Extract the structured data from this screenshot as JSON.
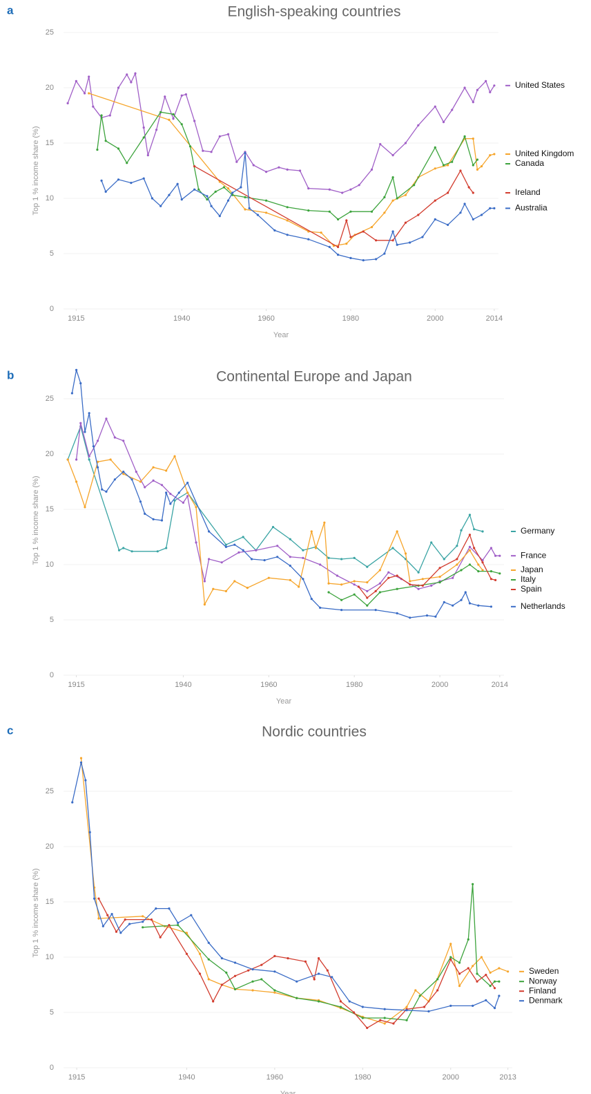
{
  "chart_data": [
    {
      "type": "line",
      "panel_label": "a",
      "title": "English-speaking countries",
      "xlabel": "Year",
      "ylabel": "Top 1 % income share (%)",
      "xlim": [
        1912,
        2015
      ],
      "ylim": [
        0,
        25
      ],
      "xticks": [
        1915,
        1940,
        1960,
        1980,
        2000,
        2014
      ],
      "yticks": [
        0,
        5,
        10,
        15,
        20,
        25
      ],
      "grid": true,
      "series": [
        {
          "name": "United States",
          "color": "#a05fc7",
          "x": [
            1913,
            1915,
            1917,
            1918,
            1919,
            1921,
            1923,
            1925,
            1927,
            1928,
            1929,
            1931,
            1932,
            1934,
            1936,
            1938,
            1940,
            1941,
            1943,
            1945,
            1947,
            1949,
            1951,
            1953,
            1955,
            1957,
            1960,
            1963,
            1965,
            1968,
            1970,
            1975,
            1978,
            1980,
            1982,
            1985,
            1987,
            1990,
            1993,
            1996,
            2000,
            2002,
            2004,
            2007,
            2009,
            2010,
            2012,
            2013,
            2014
          ],
          "values": [
            18.6,
            20.6,
            19.5,
            21,
            18.3,
            17.3,
            17.5,
            20,
            21.2,
            20.5,
            21.3,
            16.4,
            13.9,
            16.2,
            19.2,
            17.2,
            19.3,
            19.4,
            17,
            14.3,
            14.2,
            15.6,
            15.8,
            13.3,
            14.2,
            13,
            12.4,
            12.8,
            12.6,
            12.5,
            10.9,
            10.8,
            10.5,
            10.8,
            11.2,
            12.6,
            14.9,
            13.9,
            15,
            16.6,
            18.3,
            16.9,
            18,
            20,
            18.7,
            19.8,
            20.6,
            19.6,
            20.2
          ]
        },
        {
          "name": "United Kingdom",
          "color": "#f6a52b",
          "x": [
            1918,
            1937,
            1949,
            1951,
            1955,
            1960,
            1965,
            1970,
            1973,
            1976,
            1979,
            1981,
            1985,
            1988,
            1990,
            1993,
            1996,
            2000,
            2003,
            2007,
            2009,
            2010,
            2011,
            2013,
            2014
          ],
          "values": [
            19.5,
            17.1,
            11.5,
            10.9,
            9,
            8.7,
            8,
            7,
            6.9,
            5.7,
            5.9,
            6.7,
            7.4,
            8.7,
            9.8,
            10.3,
            11.9,
            12.7,
            13,
            15.4,
            15.4,
            12.6,
            12.9,
            13.9,
            14
          ]
        },
        {
          "name": "Canada",
          "color": "#3ca33c",
          "x": [
            1920,
            1921,
            1922,
            1925,
            1927,
            1931,
            1935,
            1938,
            1940,
            1942,
            1944,
            1946,
            1948,
            1950,
            1952,
            1955,
            1960,
            1965,
            1970,
            1975,
            1977,
            1980,
            1985,
            1988,
            1990,
            1991,
            1995,
            2000,
            2002,
            2004,
            2007,
            2009,
            2010
          ],
          "values": [
            14.4,
            17.5,
            15.2,
            14.5,
            13.2,
            15.5,
            17.8,
            17.6,
            16.7,
            14.7,
            10.8,
            9.9,
            10.6,
            11,
            10.3,
            10.1,
            9.8,
            9.2,
            8.9,
            8.8,
            8.1,
            8.8,
            8.8,
            10.1,
            11.9,
            10,
            11.2,
            14.6,
            13,
            13.3,
            15.6,
            13,
            13.5
          ]
        },
        {
          "name": "Ireland",
          "color": "#d23c2e",
          "x": [
            1943,
            1977,
            1979,
            1980,
            1983,
            1986,
            1990,
            1993,
            1996,
            2000,
            2003,
            2006,
            2008,
            2009
          ],
          "values": [
            12.9,
            5.6,
            8,
            6.5,
            7,
            6.2,
            6.2,
            7.8,
            8.5,
            9.8,
            10.5,
            12.5,
            11,
            10.5
          ]
        },
        {
          "name": "Australia",
          "color": "#3a6cc6",
          "x": [
            1921,
            1922,
            1925,
            1928,
            1931,
            1933,
            1935,
            1937,
            1939,
            1940,
            1943,
            1946,
            1947,
            1949,
            1951,
            1952,
            1954,
            1955,
            1956,
            1958,
            1962,
            1965,
            1970,
            1975,
            1977,
            1980,
            1983,
            1986,
            1988,
            1990,
            1991,
            1994,
            1997,
            2000,
            2003,
            2006,
            2007,
            2009,
            2011,
            2013,
            2014
          ],
          "values": [
            11.6,
            10.6,
            11.7,
            11.4,
            11.8,
            10,
            9.3,
            10.3,
            11.3,
            9.9,
            10.8,
            10.2,
            9.3,
            8.4,
            9.8,
            10.5,
            11,
            14.1,
            9.1,
            8.5,
            7.1,
            6.7,
            6.3,
            5.6,
            4.9,
            4.6,
            4.4,
            4.5,
            5,
            7,
            5.8,
            6,
            6.5,
            8.1,
            7.6,
            8.7,
            9.5,
            8.1,
            8.5,
            9.1,
            9.1
          ]
        }
      ]
    },
    {
      "type": "line",
      "panel_label": "b",
      "title": "Continental Europe and Japan",
      "xlabel": "Year",
      "ylabel": "Top 1 % income share (%)",
      "xlim": [
        1912,
        2015
      ],
      "ylim": [
        0,
        28
      ],
      "xticks": [
        1915,
        1940,
        1960,
        1980,
        2000,
        2014
      ],
      "yticks": [
        0,
        5,
        10,
        15,
        20,
        25
      ],
      "grid": true,
      "series": [
        {
          "name": "Germany",
          "color": "#3aa4a4",
          "x": [
            1913,
            1916,
            1918,
            1925,
            1926,
            1928,
            1934,
            1936,
            1938,
            1941,
            1950,
            1954,
            1957,
            1961,
            1965,
            1968,
            1971,
            1974,
            1977,
            1980,
            1983,
            1989,
            1992,
            1995,
            1998,
            2001,
            2004,
            2005,
            2007,
            2008,
            2010
          ],
          "values": [
            19.5,
            22.5,
            19.5,
            11.3,
            11.5,
            11.2,
            11.2,
            11.5,
            15.8,
            16.5,
            11.8,
            12.5,
            11.3,
            13.4,
            12.3,
            11.3,
            11.6,
            10.6,
            10.5,
            10.6,
            9.8,
            11.5,
            10.5,
            9.3,
            12,
            10.5,
            11.7,
            13.1,
            14.5,
            13.2,
            13
          ]
        },
        {
          "name": "France",
          "color": "#a05fc7",
          "x": [
            1915,
            1916,
            1918,
            1920,
            1922,
            1924,
            1926,
            1929,
            1931,
            1933,
            1935,
            1937,
            1940,
            1941,
            1943,
            1945,
            1946,
            1949,
            1953,
            1957,
            1962,
            1965,
            1968,
            1972,
            1976,
            1980,
            1983,
            1986,
            1988,
            1991,
            1995,
            1998,
            2000,
            2003,
            2007,
            2010,
            2012,
            2013,
            2014
          ],
          "values": [
            19.5,
            22.8,
            19.8,
            21.2,
            23.2,
            21.5,
            21.2,
            18.4,
            17,
            17.6,
            17.2,
            16.4,
            15.6,
            16.2,
            12,
            8.5,
            10.5,
            10.2,
            11.1,
            11.3,
            11.7,
            10.7,
            10.6,
            10,
            9,
            8.2,
            7.6,
            8.3,
            9.3,
            8.7,
            7.8,
            8.1,
            8.5,
            8.8,
            11.6,
            10.4,
            11.5,
            10.8,
            10.8
          ]
        },
        {
          "name": "Japan",
          "color": "#f6a52b",
          "x": [
            1913,
            1915,
            1917,
            1920,
            1923,
            1926,
            1930,
            1933,
            1936,
            1938,
            1941,
            1943,
            1945,
            1947,
            1950,
            1952,
            1955,
            1960,
            1965,
            1967,
            1970,
            1971,
            1973,
            1974,
            1977,
            1980,
            1983,
            1986,
            1990,
            1992,
            1993,
            1996,
            2000,
            2004,
            2007,
            2009,
            2010
          ],
          "values": [
            19.5,
            17.5,
            15.2,
            19.3,
            19.5,
            18.2,
            17.5,
            18.8,
            18.5,
            19.8,
            16.5,
            15.2,
            6.4,
            7.8,
            7.6,
            8.5,
            7.9,
            8.8,
            8.6,
            8,
            13,
            11.5,
            13.8,
            8.3,
            8.2,
            8.5,
            8.4,
            9.5,
            13,
            11,
            8.5,
            8.7,
            8.9,
            10,
            11.3,
            10,
            9.5
          ]
        },
        {
          "name": "Italy",
          "color": "#3ca33c",
          "x": [
            1974,
            1977,
            1980,
            1983,
            1986,
            1990,
            1995,
            2000,
            2005,
            2007,
            2009,
            2012,
            2014
          ],
          "values": [
            7.5,
            6.8,
            7.3,
            6.3,
            7.5,
            7.8,
            8.1,
            8.4,
            9.5,
            10,
            9.4,
            9.4,
            9.2
          ]
        },
        {
          "name": "Spain",
          "color": "#d23c2e",
          "x": [
            1981,
            1983,
            1985,
            1988,
            1990,
            1993,
            1996,
            2000,
            2004,
            2007,
            2008,
            2010,
            2012,
            2013
          ],
          "values": [
            8,
            7,
            7.6,
            8.8,
            9,
            8.2,
            8.1,
            9.7,
            10.5,
            12.7,
            11.5,
            10.2,
            8.7,
            8.6
          ]
        },
        {
          "name": "Netherlands",
          "color": "#3a6cc6",
          "x": [
            1914,
            1915,
            1916,
            1917,
            1918,
            1919,
            1920,
            1921,
            1922,
            1924,
            1926,
            1928,
            1930,
            1931,
            1933,
            1935,
            1936,
            1937,
            1939,
            1941,
            1946,
            1950,
            1952,
            1954,
            1956,
            1959,
            1962,
            1965,
            1968,
            1970,
            1972,
            1977,
            1985,
            1990,
            1993,
            1997,
            1999,
            2001,
            2003,
            2005,
            2006,
            2007,
            2009,
            2012
          ],
          "values": [
            25.5,
            27.6,
            26.4,
            22,
            23.7,
            20.7,
            18.8,
            16.8,
            16.6,
            17.7,
            18.4,
            17.7,
            15.7,
            14.6,
            14.1,
            14,
            16.5,
            15.5,
            16.5,
            17.4,
            13,
            11.6,
            11.8,
            11.3,
            10.5,
            10.4,
            10.7,
            9.9,
            8.7,
            6.9,
            6.1,
            5.9,
            5.9,
            5.6,
            5.2,
            5.4,
            5.3,
            6.6,
            6.3,
            6.8,
            7.5,
            6.5,
            6.3,
            6.2
          ]
        }
      ]
    },
    {
      "type": "line",
      "panel_label": "c",
      "title": "Nordic countries",
      "xlabel": "Year",
      "ylabel": "Top 1 % income share (%)",
      "xlim": [
        1912,
        2014
      ],
      "ylim": [
        0,
        28
      ],
      "xticks": [
        1915,
        1940,
        1960,
        1980,
        2000,
        2013
      ],
      "yticks": [
        0,
        5,
        10,
        15,
        20,
        25
      ],
      "grid": true,
      "series": [
        {
          "name": "Sweden",
          "color": "#f6a52b",
          "x": [
            1916,
            1919,
            1920,
            1930,
            1935,
            1940,
            1943,
            1945,
            1948,
            1951,
            1955,
            1960,
            1965,
            1970,
            1975,
            1980,
            1985,
            1990,
            1992,
            1995,
            2000,
            2002,
            2005,
            2007,
            2009,
            2011,
            2013
          ],
          "values": [
            28,
            16.3,
            13.5,
            13.7,
            12.8,
            12.2,
            10.3,
            8,
            7.5,
            7.1,
            7,
            6.8,
            6.3,
            6.1,
            5.4,
            4.6,
            4,
            5.5,
            7,
            6,
            11.2,
            7.4,
            9.2,
            10,
            8.6,
            9,
            8.7
          ]
        },
        {
          "name": "Norway",
          "color": "#3ca33c",
          "x": [
            1930,
            1938,
            1945,
            1949,
            1951,
            1955,
            1957,
            1960,
            1965,
            1970,
            1975,
            1980,
            1985,
            1990,
            1993,
            1997,
            2000,
            2002,
            2004,
            2005,
            2006,
            2009,
            2010,
            2011
          ],
          "values": [
            12.7,
            12.9,
            9.8,
            8.6,
            7.1,
            7.8,
            8,
            7,
            6.3,
            6,
            5.5,
            4.5,
            4.5,
            4.3,
            6.5,
            8,
            10,
            9.5,
            11.6,
            16.6,
            8.5,
            7.4,
            7.8,
            7.8
          ]
        },
        {
          "name": "Finland",
          "color": "#d23c2e",
          "x": [
            1920,
            1922,
            1924,
            1926,
            1932,
            1934,
            1936,
            1940,
            1943,
            1946,
            1948,
            1951,
            1954,
            1957,
            1960,
            1963,
            1967,
            1969,
            1970,
            1972,
            1975,
            1978,
            1981,
            1984,
            1987,
            1990,
            1994,
            1997,
            2000,
            2002,
            2004,
            2006,
            2008,
            2010
          ],
          "values": [
            15.3,
            13.8,
            12.3,
            13.4,
            13.4,
            11.8,
            12.9,
            10.3,
            8.5,
            6,
            7.5,
            8.3,
            8.8,
            9.3,
            10.1,
            9.9,
            9.6,
            8,
            9.9,
            8.8,
            6,
            5,
            3.6,
            4.3,
            4,
            5.3,
            5.5,
            7,
            9.8,
            8.5,
            9,
            7.8,
            8.4,
            7.2
          ]
        },
        {
          "name": "Denmark",
          "color": "#3a6cc6",
          "x": [
            1914,
            1916,
            1917,
            1918,
            1919,
            1921,
            1923,
            1925,
            1927,
            1930,
            1933,
            1936,
            1938,
            1941,
            1945,
            1948,
            1951,
            1955,
            1960,
            1965,
            1970,
            1973,
            1977,
            1980,
            1985,
            1990,
            1995,
            2000,
            2005,
            2008,
            2010,
            2011
          ],
          "values": [
            24,
            27.6,
            26,
            21.3,
            15.3,
            12.8,
            13.9,
            12.2,
            13,
            13.2,
            14.4,
            14.4,
            13.1,
            13.8,
            11.3,
            9.9,
            9.5,
            8.9,
            8.7,
            7.8,
            8.5,
            8.2,
            6,
            5.5,
            5.3,
            5.2,
            5.1,
            5.6,
            5.6,
            6.1,
            5.4,
            6.5
          ]
        }
      ]
    }
  ]
}
